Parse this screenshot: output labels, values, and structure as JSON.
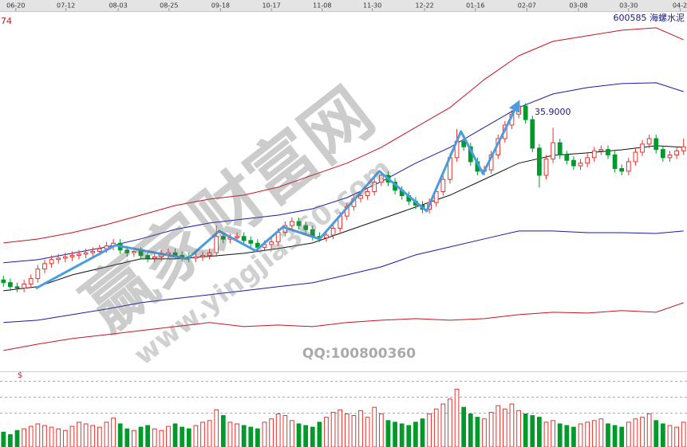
{
  "chart_data": [
    {
      "type": "candlestick",
      "corner_label": "74",
      "stock": "600585  海螺水泥",
      "annotation": "35.9000",
      "watermark": "赢家财富网",
      "watermark_url": "www.yingjia360.com",
      "contact": "QQ:100800360",
      "up_color": "#e8322e",
      "down_color": "#009a2a",
      "xlim": [
        -0.5,
        99.5
      ],
      "ylim": [
        16.13,
        42.35
      ],
      "xticks": [
        {
          "value": 1.8,
          "label": "06-20"
        },
        {
          "value": 9.1,
          "label": "07-12"
        },
        {
          "value": 16.7,
          "label": "08-03"
        },
        {
          "value": 24.1,
          "label": "08-25"
        },
        {
          "value": 31.6,
          "label": "09-18"
        },
        {
          "value": 39,
          "label": "10-17"
        },
        {
          "value": 46.4,
          "label": "11-08"
        },
        {
          "value": 53.7,
          "label": "11-30"
        },
        {
          "value": 61.3,
          "label": "12-22"
        },
        {
          "value": 68.7,
          "label": "01-16"
        },
        {
          "value": 76.2,
          "label": "02-07"
        },
        {
          "value": 83.7,
          "label": "03-08"
        },
        {
          "value": 91,
          "label": "03-30"
        },
        {
          "value": 98.5,
          "label": "04-2"
        }
      ],
      "open": [
        22.8,
        22.6,
        22.3,
        22.2,
        22.5,
        22.9,
        23.6,
        24.0,
        24.3,
        24.4,
        24.5,
        24.6,
        24.7,
        24.8,
        24.9,
        25.1,
        25.3,
        25.5,
        25.0,
        24.8,
        24.9,
        24.6,
        24.4,
        24.5,
        24.7,
        24.8,
        24.6,
        24.5,
        24.4,
        24.5,
        24.6,
        24.8,
        26.0,
        25.8,
        25.9,
        26.0,
        25.7,
        25.5,
        25.2,
        25.4,
        25.6,
        26.3,
        26.8,
        27.1,
        26.8,
        26.5,
        26.0,
        25.9,
        26.1,
        26.6,
        27.5,
        28.2,
        28.8,
        29.0,
        29.3,
        30.0,
        30.5,
        30.0,
        29.4,
        29.0,
        28.6,
        28.3,
        28.0,
        28.5,
        29.3,
        30.2,
        31.8,
        33.0,
        32.6,
        31.5,
        30.8,
        30.9,
        32.0,
        33.2,
        34.2,
        35.0,
        35.6,
        34.6,
        32.5,
        30.5,
        31.7,
        32.9,
        32.0,
        31.6,
        31.2,
        31.4,
        31.8,
        32.3,
        32.4,
        32.0,
        31.0,
        30.8,
        31.5,
        32.2,
        32.8,
        33.2,
        32.4,
        31.8,
        32.0,
        32.3
      ],
      "close": [
        22.6,
        22.3,
        22.2,
        22.5,
        22.9,
        23.6,
        24.0,
        24.3,
        24.4,
        24.5,
        24.6,
        24.7,
        24.8,
        24.9,
        25.1,
        25.3,
        25.5,
        25.0,
        24.8,
        24.9,
        24.6,
        24.4,
        24.5,
        24.7,
        24.8,
        24.6,
        24.5,
        24.4,
        24.5,
        24.6,
        24.8,
        26.0,
        25.8,
        25.9,
        26.0,
        25.7,
        25.5,
        25.2,
        25.4,
        25.6,
        26.3,
        26.8,
        27.1,
        26.8,
        26.5,
        26.0,
        25.9,
        26.1,
        26.6,
        27.5,
        28.2,
        28.8,
        29.0,
        29.3,
        30.0,
        30.5,
        30.0,
        29.4,
        29.0,
        28.6,
        28.3,
        28.0,
        28.5,
        29.3,
        30.2,
        31.8,
        33.0,
        32.6,
        31.5,
        30.8,
        30.9,
        32.0,
        33.2,
        34.2,
        35.0,
        35.6,
        34.6,
        32.5,
        30.5,
        31.7,
        32.9,
        32.0,
        31.6,
        31.2,
        31.4,
        31.8,
        32.3,
        32.4,
        32.0,
        31.0,
        30.8,
        31.5,
        32.2,
        32.8,
        33.2,
        32.4,
        31.8,
        32.0,
        32.3,
        32.6
      ],
      "high": [
        23.1,
        22.9,
        22.6,
        22.8,
        23.2,
        23.9,
        24.3,
        24.6,
        24.7,
        24.8,
        24.9,
        25.0,
        25.1,
        25.2,
        25.4,
        25.6,
        25.8,
        25.8,
        25.3,
        25.2,
        25.2,
        24.9,
        24.8,
        25.0,
        25.1,
        25.1,
        24.9,
        24.8,
        24.8,
        24.9,
        25.1,
        26.8,
        26.3,
        26.2,
        26.3,
        26.3,
        26.0,
        25.8,
        25.7,
        25.9,
        26.6,
        27.1,
        27.4,
        27.4,
        27.1,
        26.8,
        26.3,
        26.4,
        26.9,
        27.8,
        28.5,
        29.1,
        29.3,
        29.6,
        30.3,
        30.8,
        30.8,
        30.3,
        29.7,
        29.3,
        28.9,
        28.6,
        28.8,
        29.6,
        30.5,
        32.1,
        33.9,
        33.3,
        32.9,
        31.8,
        31.2,
        32.3,
        33.5,
        34.5,
        35.3,
        35.9,
        35.8,
        34.9,
        32.8,
        32.0,
        34.0,
        33.2,
        32.3,
        31.9,
        31.7,
        32.1,
        32.6,
        32.7,
        32.7,
        32.3,
        31.3,
        31.8,
        32.5,
        33.1,
        33.5,
        33.5,
        32.7,
        32.3,
        32.6,
        33.2
      ],
      "low": [
        22.3,
        22.0,
        21.9,
        21.9,
        22.2,
        22.6,
        23.3,
        23.7,
        24.0,
        24.1,
        24.2,
        24.3,
        24.4,
        24.5,
        24.6,
        24.8,
        25.0,
        24.7,
        24.5,
        24.5,
        24.3,
        24.1,
        24.1,
        24.2,
        24.4,
        24.3,
        24.2,
        24.1,
        24.1,
        24.2,
        24.3,
        24.5,
        25.5,
        25.5,
        25.6,
        25.4,
        25.2,
        24.9,
        24.9,
        25.1,
        25.3,
        26.0,
        26.5,
        26.5,
        26.2,
        25.7,
        25.6,
        25.6,
        25.8,
        26.3,
        27.2,
        27.9,
        28.5,
        28.7,
        29.0,
        29.7,
        29.7,
        29.1,
        28.7,
        28.3,
        28.0,
        27.7,
        27.7,
        28.2,
        29.0,
        29.9,
        31.5,
        32.3,
        31.2,
        30.5,
        30.5,
        30.6,
        31.7,
        32.9,
        33.9,
        34.7,
        34.3,
        32.2,
        29.6,
        30.2,
        31.4,
        31.7,
        31.3,
        30.9,
        30.9,
        31.1,
        31.5,
        32.0,
        31.7,
        30.7,
        30.5,
        30.5,
        31.2,
        31.9,
        32.5,
        32.1,
        31.5,
        31.5,
        31.7,
        32.0
      ],
      "lines": [
        {
          "color": "#c8141e",
          "x": [
            0,
            5,
            10,
            15,
            20,
            25,
            30,
            35,
            40,
            45,
            50,
            55,
            60,
            65,
            70,
            75,
            80,
            85,
            90,
            95,
            99
          ],
          "values": [
            25.52,
            25.81,
            26.28,
            26.87,
            27.57,
            28.28,
            28.75,
            29.04,
            29.63,
            30.51,
            31.39,
            32.56,
            34.03,
            35.49,
            37.55,
            39.3,
            40.36,
            40.77,
            41.18,
            41.36,
            40.48
          ]
        },
        {
          "color": "#1a1aa8",
          "x": [
            0,
            5,
            10,
            15,
            20,
            25,
            30,
            35,
            40,
            45,
            50,
            55,
            60,
            65,
            70,
            75,
            80,
            85,
            90,
            95,
            99
          ],
          "values": [
            24.06,
            24.29,
            24.76,
            25.23,
            25.82,
            26.52,
            26.99,
            27.28,
            27.57,
            28.04,
            28.86,
            30.04,
            31.39,
            32.56,
            34.03,
            35.49,
            36.49,
            36.96,
            37.25,
            37.31,
            36.66
          ]
        },
        {
          "color": "#111111",
          "x": [
            0,
            5,
            10,
            15,
            20,
            25,
            30,
            35,
            40,
            45,
            50,
            55,
            60,
            65,
            70,
            75,
            80,
            85,
            90,
            95,
            99
          ],
          "values": [
            22.0,
            22.3,
            23.17,
            23.76,
            24.35,
            24.35,
            24.53,
            24.76,
            25.11,
            25.52,
            26.4,
            27.28,
            28.16,
            29.04,
            30.21,
            31.39,
            31.97,
            32.15,
            32.38,
            32.68,
            32.56
          ]
        },
        {
          "color": "#1a1aa8",
          "x": [
            0,
            5,
            10,
            15,
            20,
            25,
            30,
            35,
            40,
            45,
            50,
            55,
            60,
            65,
            70,
            75,
            80,
            85,
            90,
            95,
            99
          ],
          "values": [
            19.66,
            19.83,
            20.24,
            20.65,
            21.12,
            21.42,
            21.71,
            22.0,
            22.3,
            22.59,
            23.17,
            23.76,
            24.64,
            25.23,
            25.82,
            26.4,
            26.4,
            26.28,
            26.28,
            26.22,
            26.4
          ]
        },
        {
          "color": "#c8141e",
          "x": [
            0,
            5,
            10,
            15,
            20,
            25,
            30,
            35,
            40,
            45,
            50,
            55,
            60,
            65,
            70,
            75,
            80,
            85,
            90,
            95,
            99
          ],
          "values": [
            17.6,
            18.07,
            18.48,
            18.77,
            19.07,
            19.36,
            19.66,
            19.36,
            19.48,
            19.36,
            19.66,
            19.83,
            19.95,
            19.83,
            19.95,
            20.24,
            20.42,
            20.36,
            20.54,
            20.42,
            21.12
          ]
        }
      ],
      "trend": {
        "color": "#4a9be0",
        "x": [
          4.7,
          16.3,
          26.8,
          31.4,
          36.7,
          40.7,
          46.0,
          54.7,
          61.6,
          66.6,
          69.8,
          75.0
        ],
        "values": [
          22.18,
          25.35,
          24.35,
          26.4,
          24.94,
          26.7,
          25.81,
          30.8,
          27.87,
          33.73,
          30.62,
          35.9
        ]
      }
    },
    {
      "type": "bar",
      "label": "$",
      "ylim": [
        0,
        80
      ],
      "values": [
        18,
        15,
        20,
        22,
        25,
        28,
        26,
        24,
        22,
        20,
        25,
        30,
        28,
        26,
        24,
        30,
        35,
        28,
        22,
        20,
        24,
        26,
        22,
        20,
        25,
        28,
        24,
        22,
        26,
        30,
        32,
        45,
        38,
        30,
        28,
        26,
        24,
        22,
        30,
        34,
        40,
        38,
        32,
        28,
        26,
        24,
        30,
        36,
        42,
        45,
        40,
        38,
        44,
        36,
        48,
        40,
        32,
        30,
        28,
        26,
        30,
        34,
        40,
        46,
        52,
        58,
        70,
        48,
        40,
        36,
        34,
        42,
        50,
        46,
        52,
        44,
        40,
        38,
        36,
        30,
        32,
        28,
        26,
        24,
        28,
        30,
        32,
        34,
        28,
        26,
        24,
        30,
        34,
        36,
        40,
        32,
        28,
        26,
        24,
        30
      ]
    }
  ]
}
